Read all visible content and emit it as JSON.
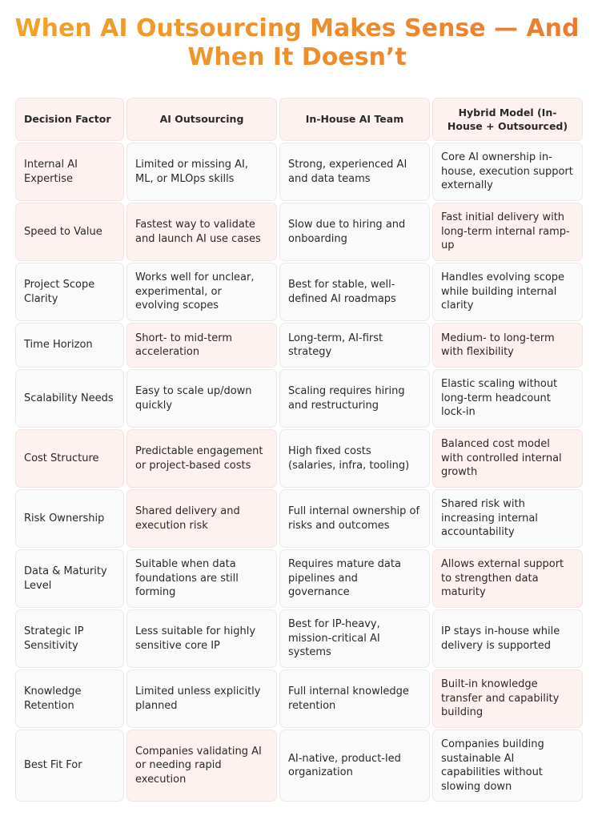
{
  "title": {
    "line1": "When AI Outsourcing Makes Sense — And",
    "line2": "When It Doesn’t"
  },
  "colors": {
    "title_start": "#f2a325",
    "title_end": "#ea7b31",
    "cell_pink": "#fdf2ef",
    "cell_white": "#fafafa"
  },
  "table": {
    "headers": [
      "Decision Factor",
      "AI Outsourcing",
      "In-House AI Team",
      "Hybrid Model (In-House + Outsourced)"
    ],
    "rows": [
      [
        "Internal AI Expertise",
        "Limited or missing AI, ML, or MLOps skills",
        "Strong, experienced AI and data teams",
        "Core AI ownership in-house, execution support externally"
      ],
      [
        "Speed to Value",
        "Fastest way to validate and launch AI use cases",
        "Slow due to hiring and onboarding",
        "Fast initial delivery with long-term internal ramp-up"
      ],
      [
        "Project Scope Clarity",
        "Works well for unclear, experimental, or evolving scopes",
        "Best for stable, well-defined AI roadmaps",
        "Handles evolving scope while building internal clarity"
      ],
      [
        "Time Horizon",
        "Short- to mid-term acceleration",
        "Long-term, AI-first strategy",
        "Medium- to long-term with flexibility"
      ],
      [
        "Scalability Needs",
        "Easy to scale up/down quickly",
        "Scaling requires hiring and restructuring",
        "Elastic scaling without long-term headcount lock-in"
      ],
      [
        "Cost Structure",
        "Predictable engagement or project-based costs",
        "High fixed costs (salaries, infra, tooling)",
        "Balanced cost model with controlled internal growth"
      ],
      [
        "Risk Ownership",
        "Shared delivery and execution risk",
        "Full internal ownership of risks and outcomes",
        "Shared risk with increasing internal accountability"
      ],
      [
        "Data & Maturity Level",
        "Suitable when data foundations are still forming",
        "Requires mature data pipelines and governance",
        "Allows external support to strengthen data maturity"
      ],
      [
        "Strategic IP Sensitivity",
        "Less suitable for highly sensitive core IP",
        "Best for IP-heavy, mission-critical AI systems",
        "IP stays in-house while delivery is supported"
      ],
      [
        "Knowledge Retention",
        "Limited unless explicitly planned",
        "Full internal knowledge retention",
        "Built-in knowledge transfer and capability building"
      ],
      [
        "Best Fit For",
        "Companies validating AI or needing rapid execution",
        "AI-native, product-led organization",
        "Companies building sustainable AI capabilities without slowing down"
      ]
    ]
  }
}
